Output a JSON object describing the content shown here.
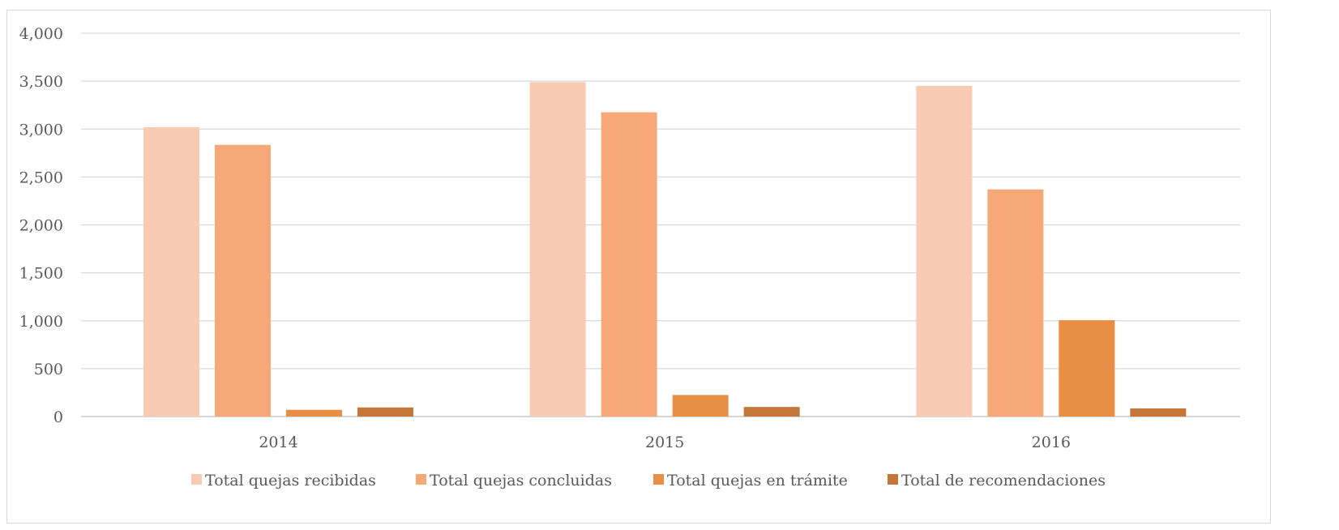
{
  "chart_data": {
    "type": "bar",
    "title": "",
    "xlabel": "",
    "ylabel": "",
    "categories": [
      "2014",
      "2015",
      "2016"
    ],
    "ylim": [
      0,
      4000
    ],
    "y_ticks": [
      0,
      500,
      1000,
      1500,
      2000,
      2500,
      3000,
      3500,
      4000
    ],
    "y_tick_labels": [
      "0",
      "500",
      "1,000",
      "1,500",
      "2,000",
      "2,500",
      "3,000",
      "3,500",
      "4,000"
    ],
    "grid": true,
    "legend_position": "bottom",
    "series": [
      {
        "name": "Total quejas recibidas",
        "color": "#f8cbb2",
        "values": [
          3020,
          3490,
          3450
        ]
      },
      {
        "name": "Total quejas concluidas",
        "color": "#f6a878",
        "values": [
          2835,
          3175,
          2370
        ]
      },
      {
        "name": "Total quejas en trámite",
        "color": "#e88f45",
        "values": [
          70,
          225,
          1005
        ]
      },
      {
        "name": "Total de recomendaciones",
        "color": "#c5773a",
        "values": [
          95,
          100,
          85
        ]
      }
    ]
  }
}
